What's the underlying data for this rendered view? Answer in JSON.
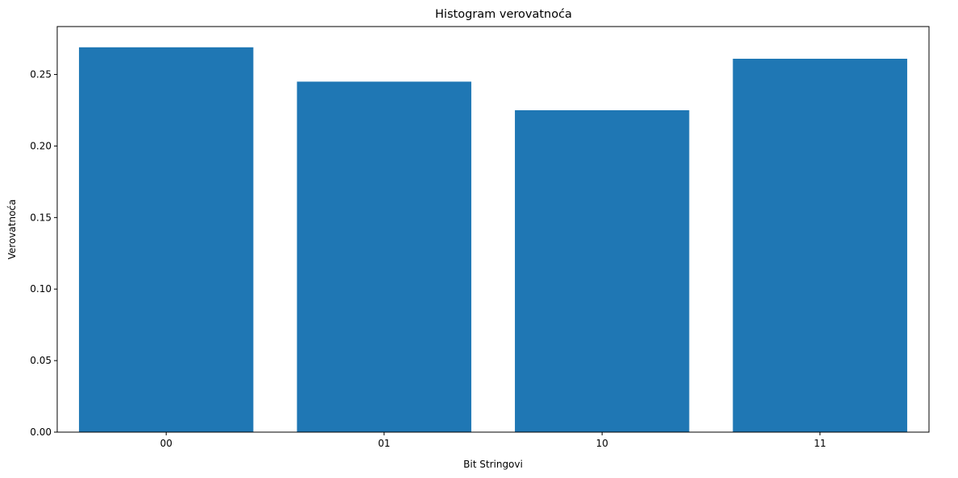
{
  "chart_data": {
    "type": "bar",
    "title": "Histogram verovatnoća",
    "xlabel": "Bit Stringovi",
    "ylabel": "Verovatnoća",
    "categories": [
      "00",
      "01",
      "10",
      "11"
    ],
    "values": [
      0.269,
      0.245,
      0.225,
      0.261
    ],
    "ylim": [
      0,
      0.2835
    ],
    "yticks": [
      "0.00",
      "0.05",
      "0.10",
      "0.15",
      "0.20",
      "0.25"
    ],
    "grid": false,
    "bar_color": "#1f77b4"
  }
}
